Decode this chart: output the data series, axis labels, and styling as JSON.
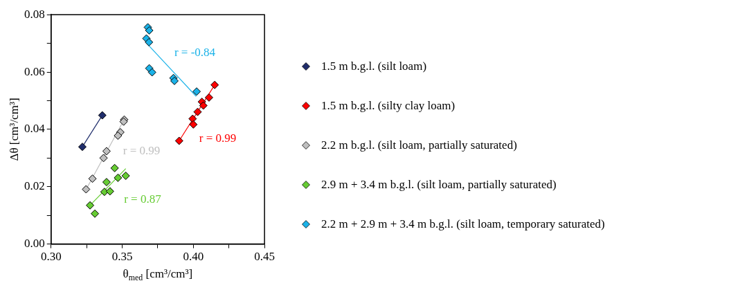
{
  "chart_data": {
    "type": "scatter",
    "xlabel": "θ$_{med}$ [cm³/cm³]",
    "ylabel": "Δθ [cm³/cm³]",
    "xlim": [
      0.3,
      0.45
    ],
    "ylim": [
      0,
      0.08
    ],
    "xticks": [
      {
        "value": 0.3,
        "label": "0.30"
      },
      {
        "value": 0.325,
        "label": null
      },
      {
        "value": 0.35,
        "label": "0.35"
      },
      {
        "value": 0.375,
        "label": null
      },
      {
        "value": 0.4,
        "label": "0.40"
      },
      {
        "value": 0.425,
        "label": null
      },
      {
        "value": 0.45,
        "label": "0.45"
      }
    ],
    "yticks": [
      {
        "value": 0,
        "label": "0.00"
      },
      {
        "value": 0.01,
        "label": null
      },
      {
        "value": 0.02,
        "label": "0.02"
      },
      {
        "value": 0.03,
        "label": null
      },
      {
        "value": 0.04,
        "label": "0.04"
      },
      {
        "value": 0.05,
        "label": null
      },
      {
        "value": 0.06,
        "label": "0.06"
      },
      {
        "value": 0.07,
        "label": null
      },
      {
        "value": 0.08,
        "label": "0.08"
      }
    ],
    "grid": false,
    "legend": "right",
    "marker": "diamond",
    "series": [
      {
        "name": "1.5 m b.g.l. (silt loam)",
        "color": "#1f2d6b",
        "x": [
          0.322,
          0.336
        ],
        "values": [
          0.0339,
          0.0449
        ]
      },
      {
        "name": "1.5 m b.g.l. (silty clay loam)",
        "color": "#ff0000",
        "x": [
          0.415,
          0.411,
          0.406,
          0.407,
          0.403,
          0.3995,
          0.4,
          0.39
        ],
        "values": [
          0.0555,
          0.0511,
          0.0496,
          0.0483,
          0.0461,
          0.0437,
          0.0417,
          0.036
        ]
      },
      {
        "name": "2.2 m b.g.l. (silt loam, partially saturated)",
        "color": "#bfbfbf",
        "x": [
          0.3514,
          0.351,
          0.3487,
          0.347,
          0.339,
          0.3369,
          0.3291,
          0.3246
        ],
        "values": [
          0.0434,
          0.0427,
          0.039,
          0.0378,
          0.0324,
          0.03,
          0.0228,
          0.0191
        ]
      },
      {
        "name": "2.9 m + 3.4 m b.g.l. (silt loam, partially saturated)",
        "color": "#66cc33",
        "x": [
          0.3447,
          0.3525,
          0.347,
          0.339,
          0.3375,
          0.3414,
          0.3274,
          0.3308
        ],
        "values": [
          0.0265,
          0.0238,
          0.0231,
          0.0216,
          0.0182,
          0.0184,
          0.0135,
          0.0106
        ]
      },
      {
        "name": "2.2 m + 2.9 m + 3.4 m b.g.l. (silt loam, temporary saturated)",
        "color": "#1ab2e8",
        "x": [
          0.368,
          0.369,
          0.367,
          0.3688,
          0.369,
          0.371,
          0.386,
          0.3867,
          0.4023
        ],
        "values": [
          0.0756,
          0.0745,
          0.0717,
          0.0704,
          0.0613,
          0.0599,
          0.0579,
          0.0569,
          0.0532
        ]
      },
      {
        "type": "line",
        "marker": "none",
        "color": "#1ab2e8",
        "x": [
          0.367,
          0.402
        ],
        "values": [
          0.0701,
          0.0515
        ]
      },
      {
        "type": "line",
        "marker": "none",
        "color": "#ff0000",
        "x": [
          0.39,
          0.415
        ],
        "values": [
          0.036,
          0.0555
        ]
      },
      {
        "type": "line",
        "marker": "none",
        "color": "#bfbfbf",
        "x": [
          0.3246,
          0.352
        ],
        "values": [
          0.019,
          0.044
        ]
      },
      {
        "type": "line",
        "marker": "none",
        "color": "#66cc33",
        "x": [
          0.3274,
          0.3525
        ],
        "values": [
          0.0135,
          0.0263
        ]
      },
      {
        "type": "line",
        "marker": "none",
        "color": "#1f2d6b",
        "x": [
          0.322,
          0.336
        ],
        "values": [
          0.0339,
          0.0449
        ]
      }
    ],
    "annotations": [
      "r = -0.84",
      "r = 0.99",
      "r = 0.99",
      "r = 0.87"
    ]
  }
}
